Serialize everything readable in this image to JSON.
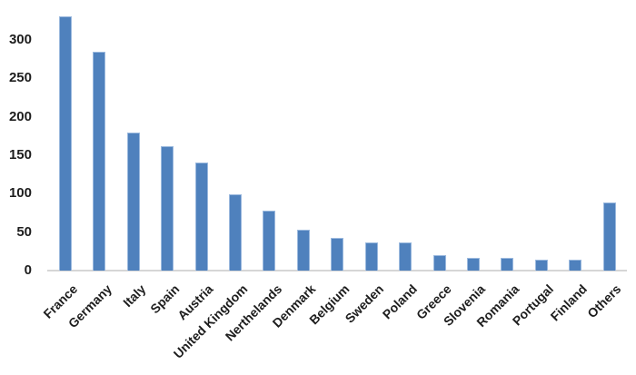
{
  "chart_data": {
    "type": "bar",
    "title": "",
    "xlabel": "",
    "ylabel": "",
    "categories": [
      "France",
      "Germany",
      "Italy",
      "Spain",
      "Austria",
      "United Kingdom",
      "Nerthelands",
      "Denmark",
      "Belgium",
      "Sweden",
      "Poland",
      "Greece",
      "Slovenia",
      "Romania",
      "Portugal",
      "Finland",
      "Others"
    ],
    "values": [
      330,
      285,
      180,
      162,
      140,
      99,
      78,
      53,
      43,
      37,
      37,
      20,
      17,
      17,
      14,
      14,
      88
    ],
    "y_ticks": [
      0,
      50,
      100,
      150,
      200,
      250,
      300
    ],
    "ylim": [
      0,
      340
    ],
    "grid": "off",
    "legend": "none",
    "x_label_rotation_deg": -45,
    "bar_color": "#4f81bd",
    "bar_border_color": "#9bb9de",
    "axis_line_color": "#d6d6d6",
    "label_color": "#1d1d1d"
  }
}
